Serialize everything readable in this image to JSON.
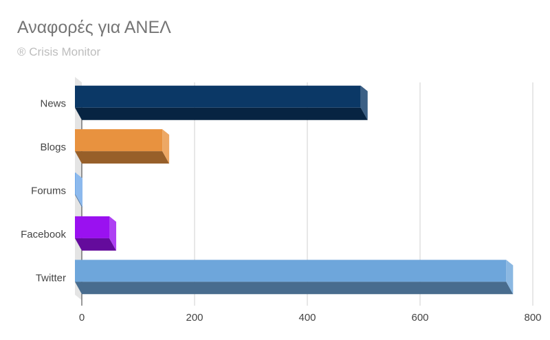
{
  "chart_data": {
    "type": "bar",
    "orientation": "horizontal",
    "title": "Αναφορές για ΑΝΕΛ",
    "subtitle": "® Crisis Monitor",
    "categories": [
      "News",
      "Blogs",
      "Forums",
      "Facebook",
      "Twitter"
    ],
    "values": [
      507,
      155,
      0,
      61,
      765
    ],
    "colors": [
      "#0b3866",
      "#e8923f",
      "#6fa8e8",
      "#9a11f0",
      "#6ea6db"
    ],
    "xlim": [
      0,
      800
    ],
    "xticks": [
      0,
      200,
      400,
      600,
      800
    ],
    "grid": true,
    "style": "3d"
  }
}
